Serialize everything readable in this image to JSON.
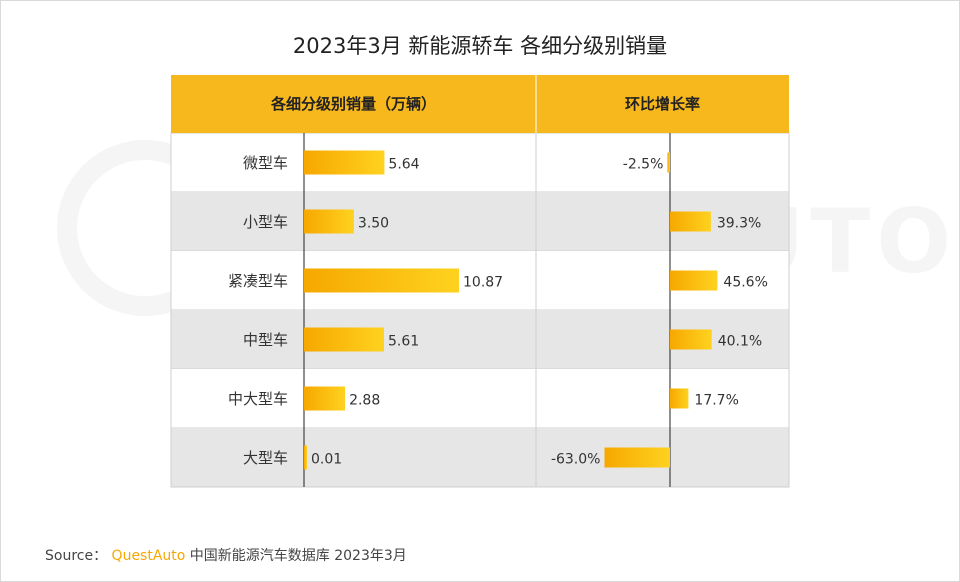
{
  "title": "2023年3月 新能源轿车 各细分级别销量",
  "watermark_text": "QUEST AUTO",
  "source": {
    "label": "Source：",
    "brand": "QuestAuto",
    "text": "中国新能源汽车数据库 2023年3月"
  },
  "colors": {
    "header": "#f7b81d",
    "bar_start": "#f6a800",
    "bar_end": "#ffd21f",
    "row_alt": "#e6e6e6"
  },
  "chart_data": {
    "type": "bar",
    "title": "2023年3月 新能源轿车 各细分级别销量",
    "categories": [
      "微型车",
      "小型车",
      "紧凑型车",
      "中型车",
      "中大型车",
      "大型车"
    ],
    "series": [
      {
        "name": "各细分级别销量（万辆）",
        "values": [
          5.64,
          3.5,
          10.87,
          5.61,
          2.88,
          0.01
        ],
        "labels": [
          "5.64",
          "3.50",
          "10.87",
          "5.61",
          "2.88",
          "0.01"
        ]
      },
      {
        "name": "环比增长率",
        "values": [
          -2.5,
          39.3,
          45.6,
          40.1,
          17.7,
          -63.0
        ],
        "labels": [
          "-2.5%",
          "39.3%",
          "45.6%",
          "40.1%",
          "17.7%",
          "-63.0%"
        ]
      }
    ]
  }
}
